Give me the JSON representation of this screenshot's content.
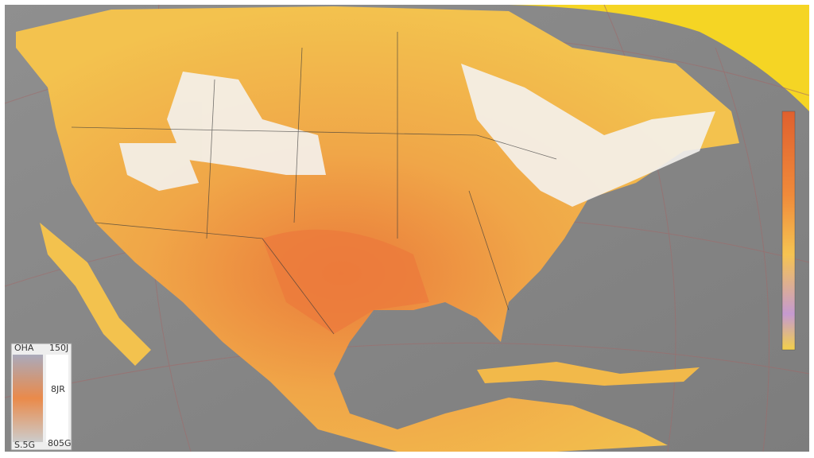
{
  "legend": {
    "labels": [
      "OHA",
      "150J",
      "8JR",
      "S.5G",
      "805G"
    ]
  }
}
